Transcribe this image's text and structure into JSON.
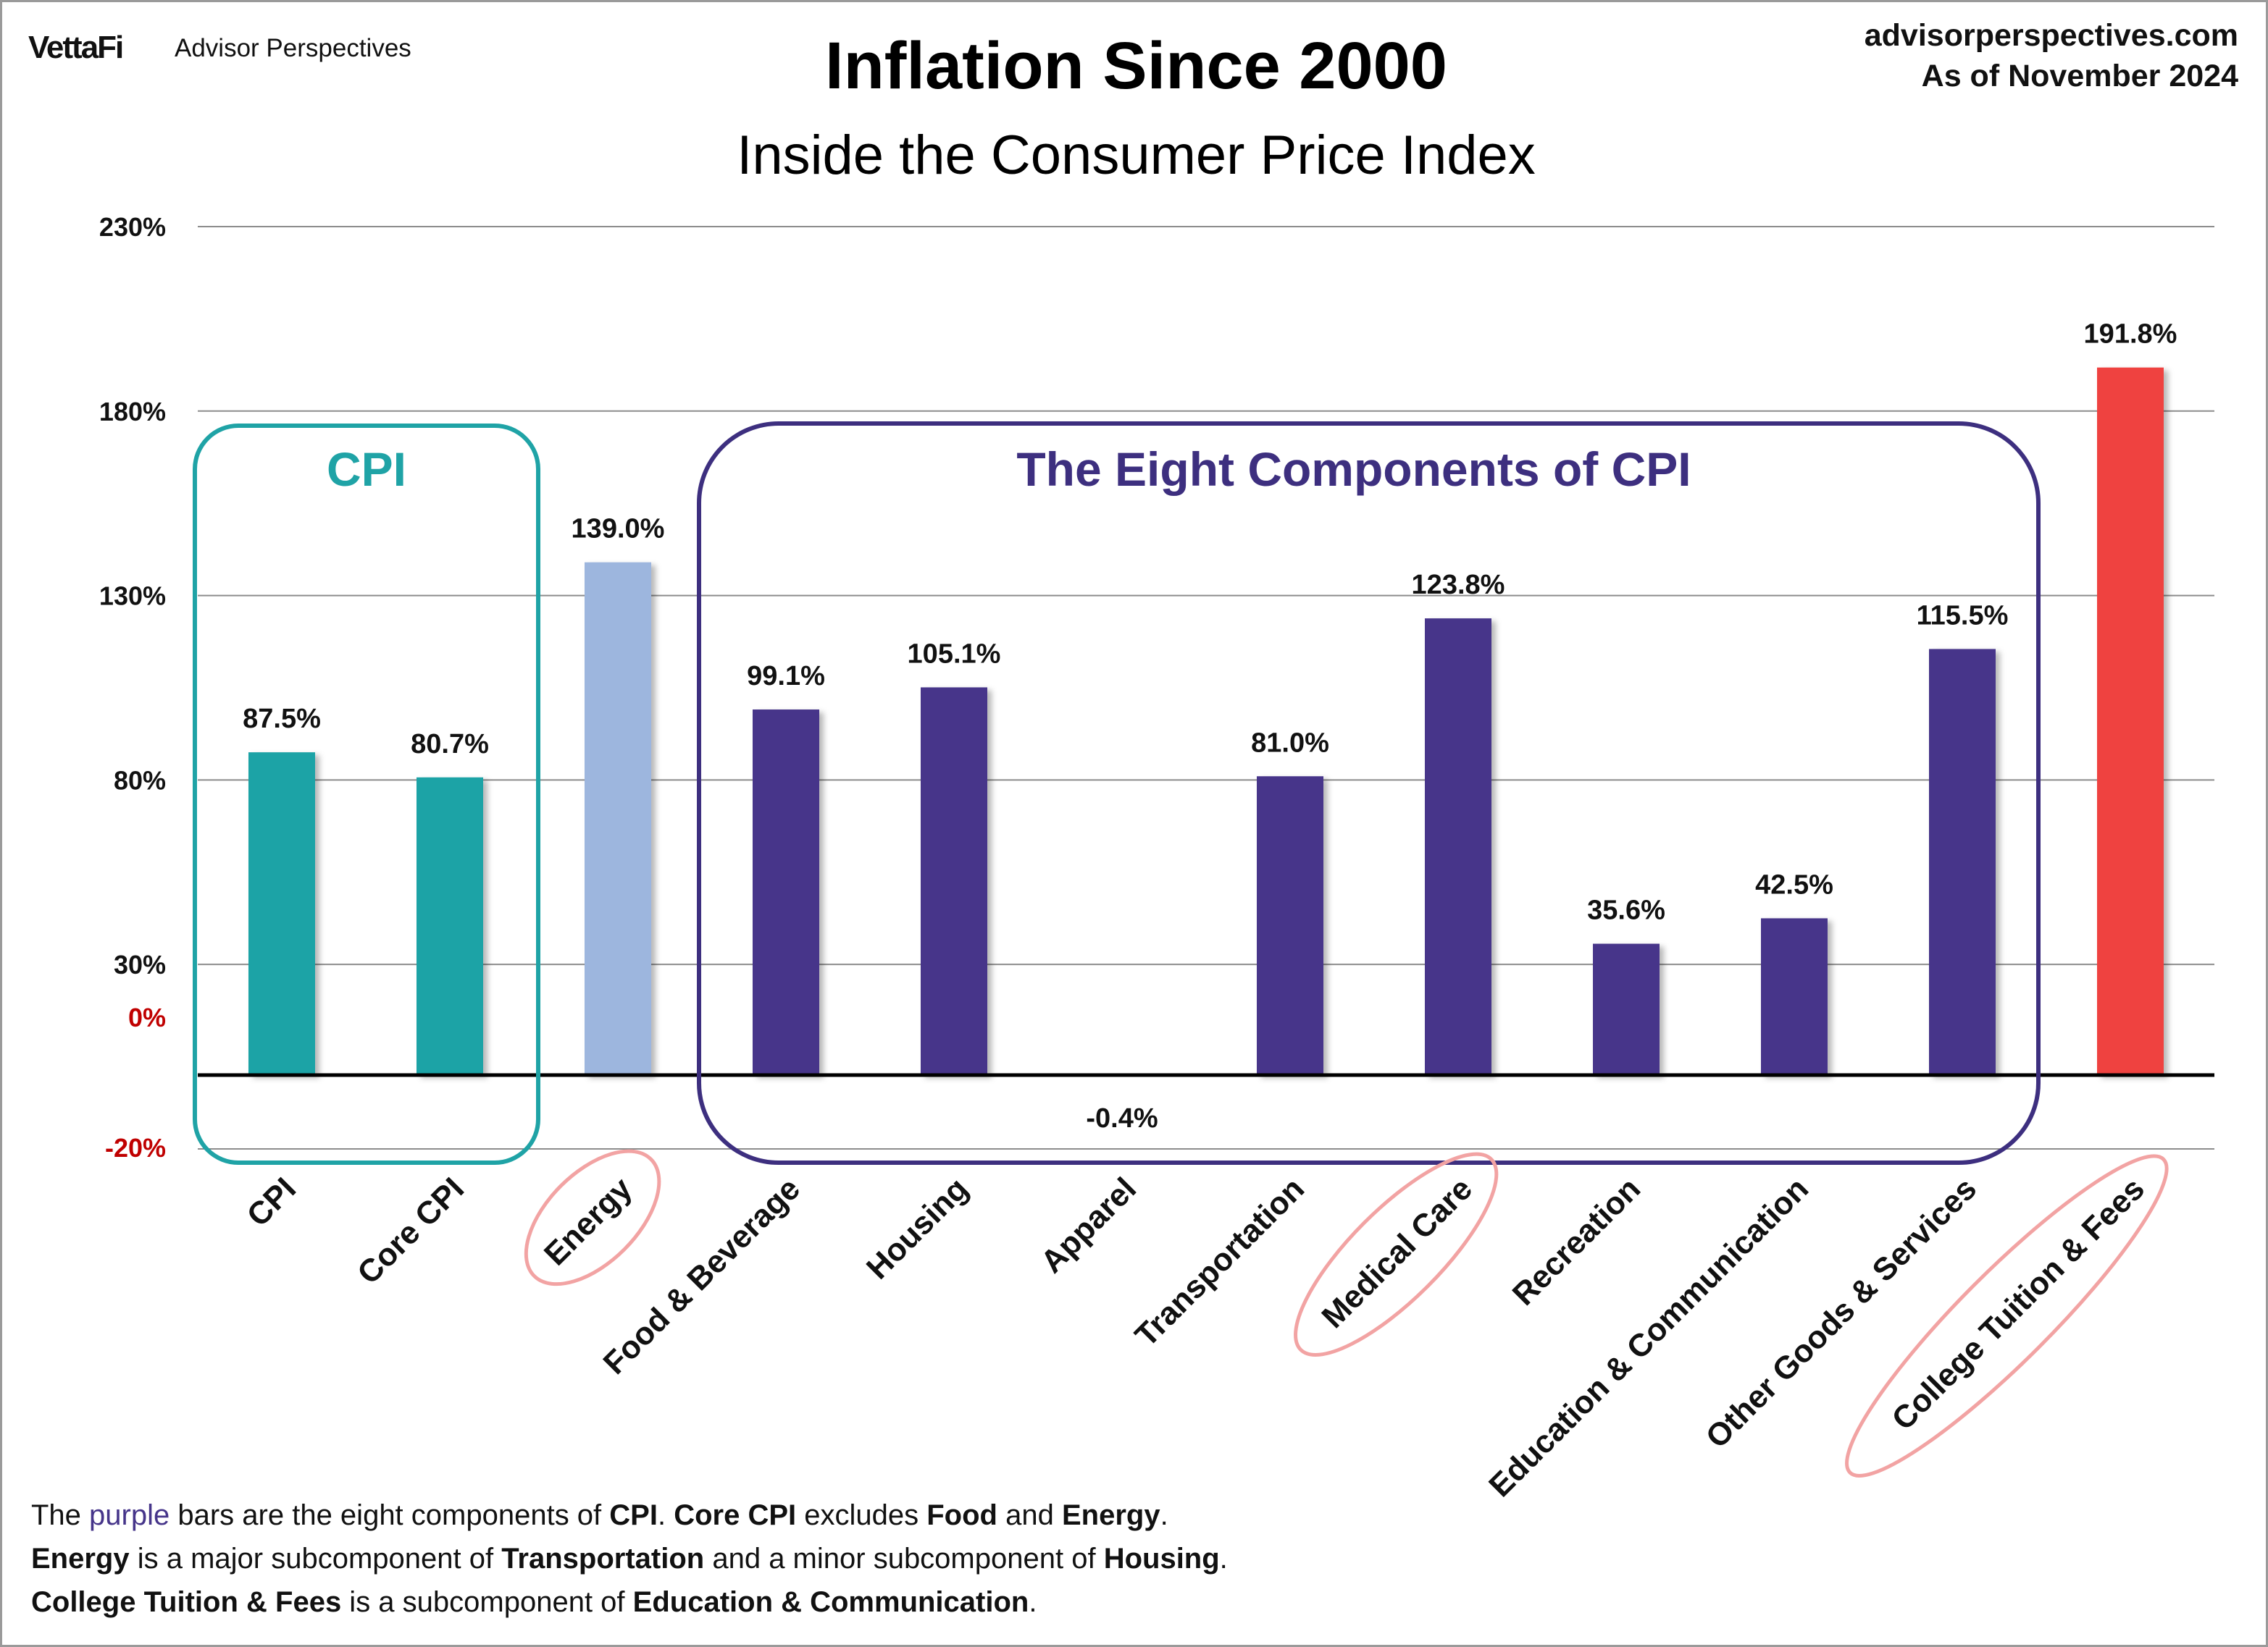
{
  "brand": {
    "logo": "VettaFi",
    "name": "Advisor Perspectives"
  },
  "source": {
    "site": "advisorperspectives.com",
    "as_of": "As of November 2024"
  },
  "annotations": {
    "cpi_group_label": "CPI",
    "components_group_label": "The Eight Components of CPI"
  },
  "notes": {
    "line1": {
      "p1": "The ",
      "purple_word": "purple",
      "p2": " bars are the eight components of ",
      "b1": "CPI",
      "p3": ". ",
      "b2": "Core CPI",
      "p4": " excludes ",
      "b3": "Food",
      "p5": " and ",
      "b4": "Energy",
      "p6": "."
    },
    "line2": {
      "b1": "Energy",
      "p1": " is a major subcomponent  of ",
      "b2": "Transportation",
      "p2": " and a minor subcomponent  of ",
      "b3": "Housing",
      "p3": "."
    },
    "line3": {
      "b1": "College Tuition & Fees",
      "p1": " is a subcomponent  of ",
      "b2": "Education & Communication",
      "p2": "."
    }
  },
  "colors": {
    "cpi_teal": "#1fa3a6",
    "energy_blue": "#9db6de",
    "component_purple": "#46358a",
    "tuition_red": "#ef4340",
    "highlight_pink": "#f2a3a3",
    "zero_label_red": "#c00000"
  },
  "chart_data": {
    "type": "bar",
    "title": "Inflation Since 2000",
    "subtitle": "Inside the Consumer Price Index",
    "xlabel": "",
    "ylabel": "",
    "ylim": [
      -20,
      230
    ],
    "yticks": [
      "230%",
      "180%",
      "130%",
      "80%",
      "30%",
      "0%",
      "-20%"
    ],
    "grid": true,
    "categories": [
      "CPI",
      "Core CPI",
      "Energy",
      "Food & Beverage",
      "Housing",
      "Apparel",
      "Transportation",
      "Medical Care",
      "Recreation",
      "Education & Communication",
      "Other Goods & Services",
      "College Tuition & Fees"
    ],
    "values": [
      87.5,
      80.7,
      139.0,
      99.1,
      105.1,
      -0.4,
      81.0,
      123.8,
      35.6,
      42.5,
      115.5,
      191.8
    ],
    "value_labels": [
      "87.5%",
      "80.7%",
      "139.0%",
      "99.1%",
      "105.1%",
      "-0.4%",
      "81.0%",
      "123.8%",
      "35.6%",
      "42.5%",
      "115.5%",
      "191.8%"
    ],
    "bar_groups": [
      "cpi",
      "cpi",
      "energy",
      "component",
      "component",
      "component",
      "component",
      "component",
      "component",
      "component",
      "component",
      "tuition"
    ],
    "highlighted_categories": [
      "Energy",
      "Medical Care",
      "College Tuition & Fees"
    ]
  }
}
